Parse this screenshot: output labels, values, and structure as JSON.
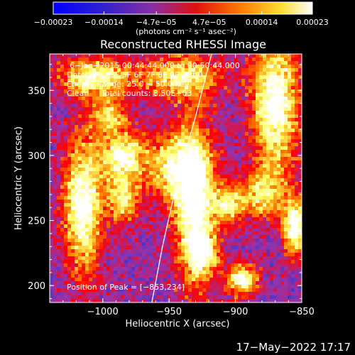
{
  "chart_data": {
    "type": "heatmap",
    "title": "Reconstructed RHESSI Image",
    "xlabel": "Heliocentric X (arcsec)",
    "ylabel": "Heliocentric Y (arcsec)",
    "xlim": [
      -1040,
      -850
    ],
    "ylim": [
      187,
      378
    ],
    "xticks": [
      -1000,
      -950,
      -900,
      -850
    ],
    "xtick_labels": [
      "−1000",
      "−950",
      "−900",
      "−850"
    ],
    "yticks": [
      200,
      250,
      300,
      350
    ],
    "ytick_labels": [
      "200",
      "250",
      "300",
      "350"
    ],
    "colorbar": {
      "ticks": [
        -0.00023,
        -0.00014,
        -4.7e-05,
        4.7e-05,
        0.00014,
        0.00023
      ],
      "tick_labels": [
        "−0.00023",
        "−0.00014",
        "−4.7e−05",
        "4.7e−05",
        "0.00014",
        "0.00023"
      ],
      "range": [
        -0.00023,
        0.00023
      ],
      "unit": "(photons cm⁻² s⁻¹ asec⁻²)",
      "colors": [
        "#0000ff",
        "#3333cc",
        "#9933aa",
        "#ff0000",
        "#ff8800",
        "#ffff66",
        "#ffffff"
      ]
    },
    "annotations": {
      "time_range": "6−Jan−2015 00:44:44.000 to 00:50:44.000",
      "detectors": "Detectors: 3F 5F 6F 7F 8F 9F, Att 0",
      "energy": "Energy Range: 25.0 − 50.0 keV",
      "clean": "Clean     Total counts: 8.50E+03",
      "peak": "Position of Peak = [−853,234]"
    },
    "limb_curve": [
      [
        -963,
        187
      ],
      [
        -955,
        230
      ],
      [
        -944,
        280
      ],
      [
        -930,
        330
      ],
      [
        -918,
        378
      ]
    ],
    "bright_regions": [
      {
        "x": -1015,
        "y": 262,
        "sx": 10,
        "sy": 35,
        "a": 0.95
      },
      {
        "x": -985,
        "y": 268,
        "sx": 8,
        "sy": 14,
        "a": 0.7
      },
      {
        "x": -1005,
        "y": 360,
        "sx": 18,
        "sy": 10,
        "a": 0.8
      },
      {
        "x": -985,
        "y": 300,
        "sx": 12,
        "sy": 12,
        "a": 0.85
      },
      {
        "x": -995,
        "y": 330,
        "sx": 10,
        "sy": 10,
        "a": 0.6
      },
      {
        "x": -930,
        "y": 260,
        "sx": 10,
        "sy": 40,
        "a": 1.0
      },
      {
        "x": -945,
        "y": 290,
        "sx": 14,
        "sy": 18,
        "a": 0.8
      },
      {
        "x": -905,
        "y": 262,
        "sx": 8,
        "sy": 10,
        "a": 0.7
      },
      {
        "x": -940,
        "y": 360,
        "sx": 20,
        "sy": 12,
        "a": 0.7
      },
      {
        "x": -870,
        "y": 340,
        "sx": 12,
        "sy": 38,
        "a": 0.95
      },
      {
        "x": -880,
        "y": 270,
        "sx": 12,
        "sy": 12,
        "a": 0.6
      },
      {
        "x": -855,
        "y": 245,
        "sx": 6,
        "sy": 14,
        "a": 1.0
      },
      {
        "x": -895,
        "y": 205,
        "sx": 8,
        "sy": 8,
        "a": 0.9
      },
      {
        "x": -925,
        "y": 225,
        "sx": 8,
        "sy": 10,
        "a": 0.6
      }
    ]
  },
  "footer": {
    "date": "17−May−2022 17:17"
  }
}
